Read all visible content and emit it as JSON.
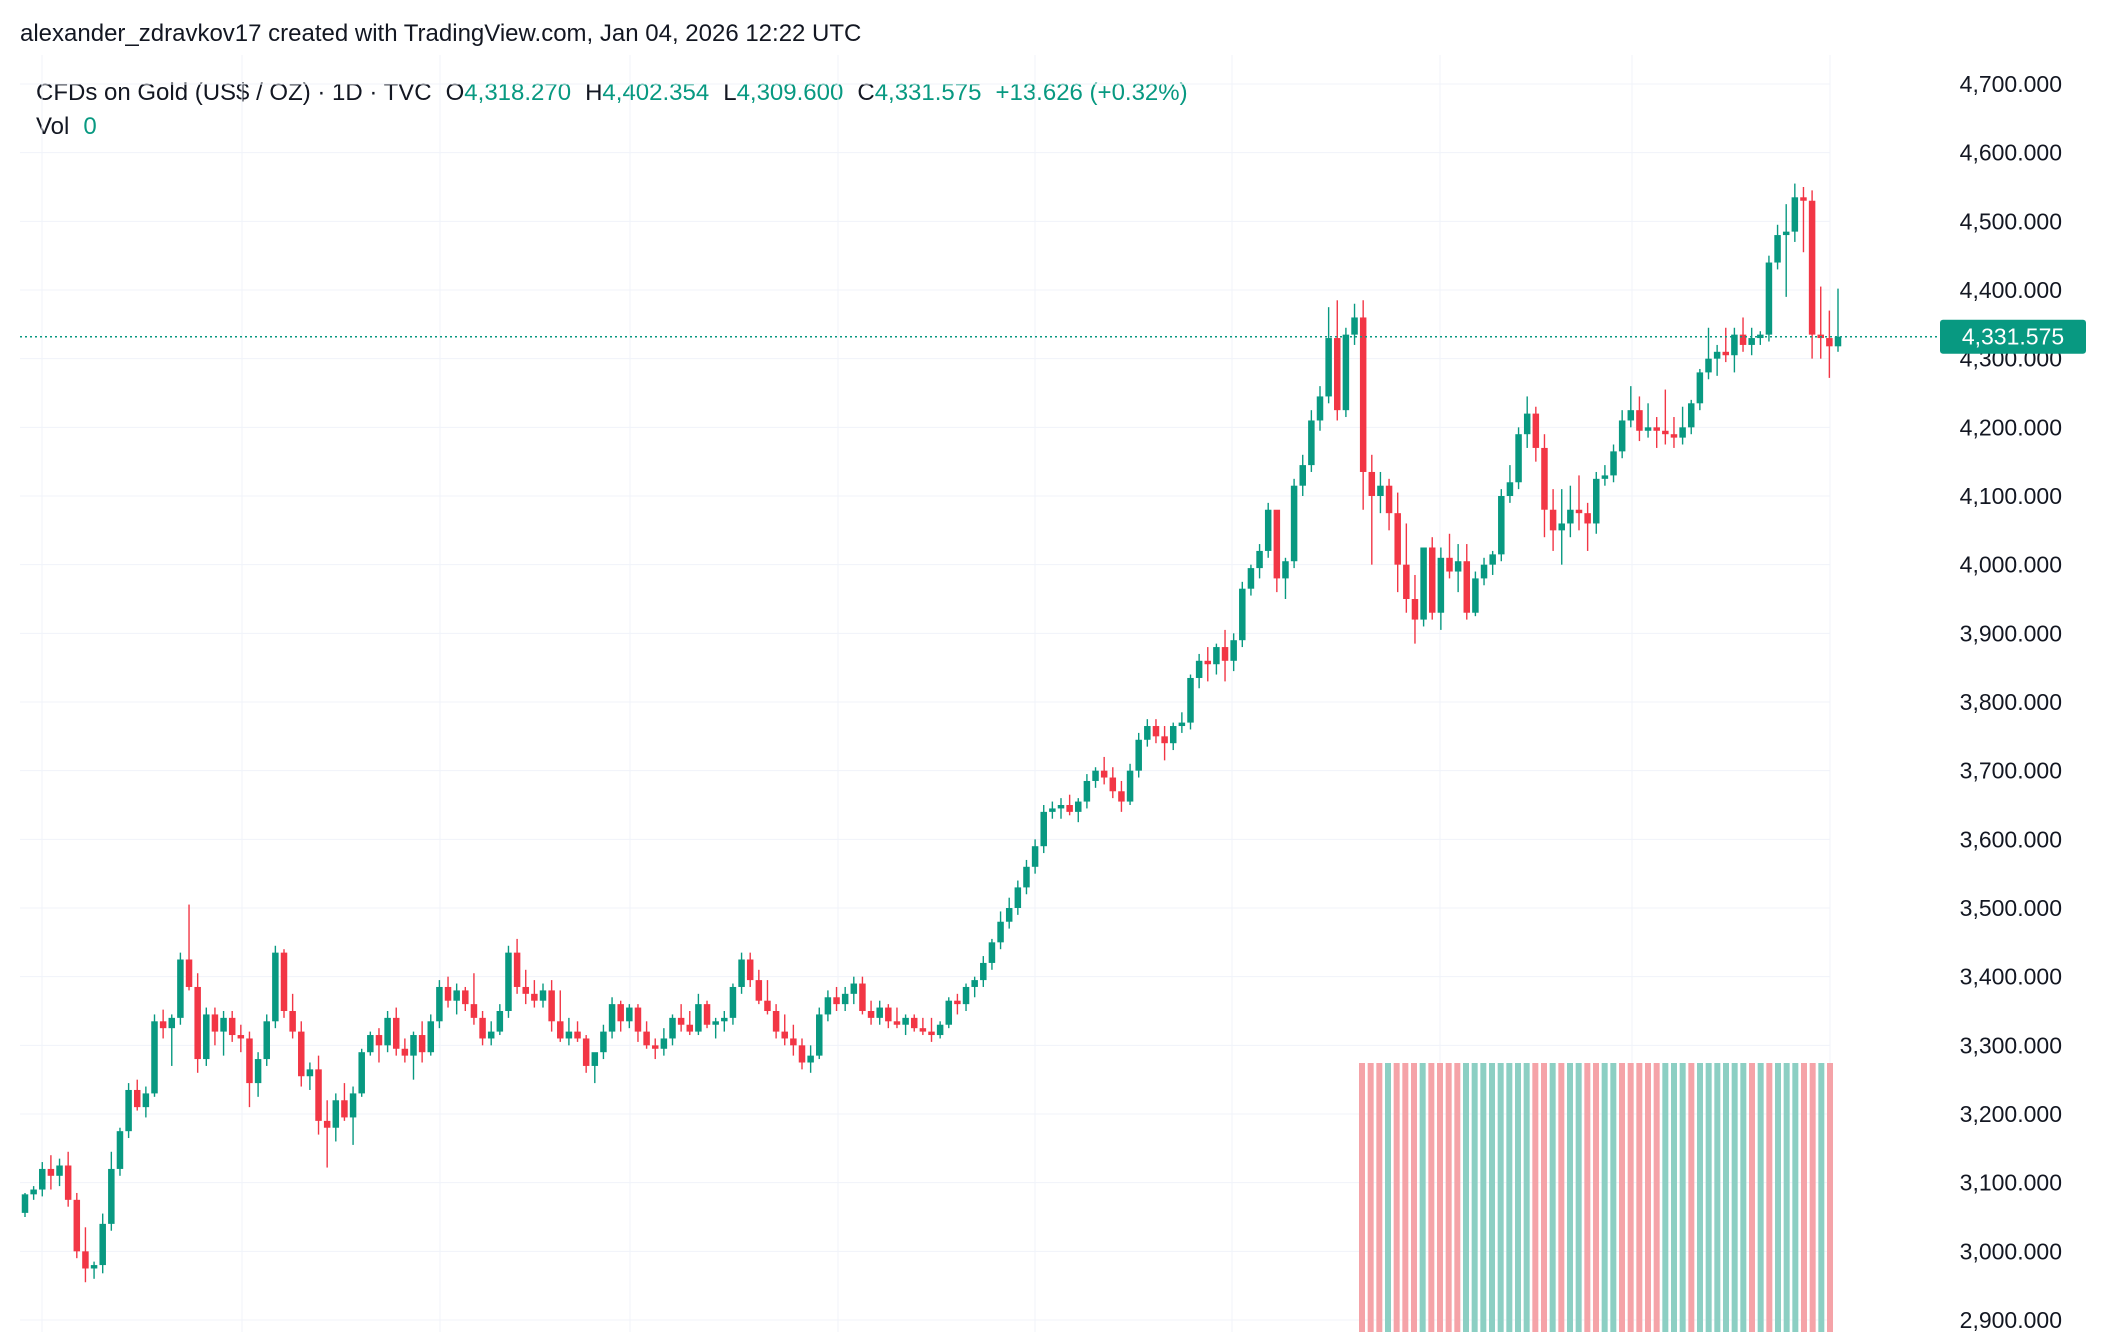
{
  "header": {
    "attribution": "alexander_zdravkov17 created with TradingView.com, Jan 04, 2026 12:22 UTC"
  },
  "legend": {
    "symbol": "CFDs on Gold (US$ / OZ) · 1D · TVC",
    "open_label": "O",
    "open": "4,318.270",
    "high_label": "H",
    "high": "4,402.354",
    "low_label": "L",
    "low": "4,309.600",
    "close_label": "C",
    "close": "4,331.575",
    "change": "+13.626 (+0.32%)",
    "vol_label": "Vol",
    "vol": "0"
  },
  "colors": {
    "up": "#089981",
    "down": "#f23645",
    "up_vol": "#8ccfc3",
    "down_vol": "#f5a3a8",
    "grid": "#f0f3fa",
    "price_line": "#089981"
  },
  "chart_data": {
    "type": "candlestick",
    "symbol": "CFDs on Gold (US$ / OZ)",
    "interval": "1D",
    "source": "TVC",
    "last_price": "4,331.575",
    "y_ticks": [
      "4,700.000",
      "4,600.000",
      "4,500.000",
      "4,400.000",
      "4,300.000",
      "4,200.000",
      "4,100.000",
      "4,000.000",
      "3,900.000",
      "3,800.000",
      "3,700.000",
      "3,600.000",
      "3,500.000",
      "3,400.000",
      "3,300.000",
      "3,200.000",
      "3,100.000",
      "3,000.000",
      "2,900.000"
    ],
    "y_tick_values": [
      4700,
      4600,
      4500,
      4400,
      4300,
      4200,
      4100,
      4000,
      3900,
      3800,
      3700,
      3600,
      3500,
      3400,
      3300,
      3200,
      3100,
      3000,
      2900
    ],
    "ylim": [
      2882,
      4782
    ],
    "grid": true,
    "candles": [
      [
        3056,
        3085,
        3050,
        3083
      ],
      [
        3083,
        3095,
        3075,
        3090
      ],
      [
        3090,
        3130,
        3080,
        3120
      ],
      [
        3120,
        3140,
        3090,
        3110
      ],
      [
        3110,
        3135,
        3095,
        3125
      ],
      [
        3125,
        3145,
        3065,
        3075
      ],
      [
        3075,
        3085,
        2990,
        3000
      ],
      [
        3000,
        3035,
        2955,
        2975
      ],
      [
        2975,
        2985,
        2960,
        2980
      ],
      [
        2980,
        3055,
        2968,
        3040
      ],
      [
        3040,
        3145,
        3030,
        3120
      ],
      [
        3120,
        3180,
        3110,
        3175
      ],
      [
        3175,
        3245,
        3165,
        3235
      ],
      [
        3235,
        3250,
        3205,
        3210
      ],
      [
        3210,
        3240,
        3195,
        3230
      ],
      [
        3230,
        3345,
        3225,
        3335
      ],
      [
        3335,
        3352,
        3310,
        3325
      ],
      [
        3325,
        3345,
        3270,
        3340
      ],
      [
        3340,
        3435,
        3330,
        3425
      ],
      [
        3425,
        3505,
        3380,
        3385
      ],
      [
        3385,
        3405,
        3260,
        3280
      ],
      [
        3280,
        3355,
        3270,
        3345
      ],
      [
        3345,
        3355,
        3300,
        3320
      ],
      [
        3320,
        3350,
        3285,
        3340
      ],
      [
        3340,
        3350,
        3305,
        3315
      ],
      [
        3315,
        3330,
        3290,
        3310
      ],
      [
        3310,
        3320,
        3210,
        3245
      ],
      [
        3245,
        3290,
        3225,
        3280
      ],
      [
        3280,
        3345,
        3270,
        3335
      ],
      [
        3335,
        3445,
        3325,
        3435
      ],
      [
        3435,
        3440,
        3340,
        3350
      ],
      [
        3350,
        3375,
        3310,
        3320
      ],
      [
        3320,
        3335,
        3240,
        3255
      ],
      [
        3255,
        3275,
        3235,
        3265
      ],
      [
        3265,
        3285,
        3170,
        3190
      ],
      [
        3190,
        3220,
        3122,
        3180
      ],
      [
        3180,
        3230,
        3160,
        3220
      ],
      [
        3220,
        3245,
        3190,
        3195
      ],
      [
        3195,
        3240,
        3155,
        3230
      ],
      [
        3230,
        3295,
        3225,
        3290
      ],
      [
        3290,
        3320,
        3285,
        3315
      ],
      [
        3315,
        3325,
        3275,
        3300
      ],
      [
        3300,
        3350,
        3290,
        3340
      ],
      [
        3340,
        3355,
        3285,
        3295
      ],
      [
        3295,
        3310,
        3275,
        3285
      ],
      [
        3285,
        3320,
        3250,
        3315
      ],
      [
        3315,
        3335,
        3275,
        3290
      ],
      [
        3290,
        3345,
        3285,
        3335
      ],
      [
        3335,
        3395,
        3325,
        3385
      ],
      [
        3385,
        3400,
        3355,
        3365
      ],
      [
        3365,
        3390,
        3345,
        3380
      ],
      [
        3380,
        3385,
        3350,
        3360
      ],
      [
        3360,
        3405,
        3330,
        3340
      ],
      [
        3340,
        3350,
        3300,
        3310
      ],
      [
        3310,
        3335,
        3300,
        3320
      ],
      [
        3320,
        3360,
        3315,
        3350
      ],
      [
        3350,
        3445,
        3340,
        3435
      ],
      [
        3435,
        3455,
        3375,
        3385
      ],
      [
        3385,
        3410,
        3360,
        3375
      ],
      [
        3375,
        3395,
        3355,
        3365
      ],
      [
        3365,
        3390,
        3355,
        3380
      ],
      [
        3380,
        3395,
        3320,
        3335
      ],
      [
        3335,
        3380,
        3305,
        3310
      ],
      [
        3310,
        3340,
        3300,
        3320
      ],
      [
        3320,
        3335,
        3305,
        3310
      ],
      [
        3310,
        3315,
        3260,
        3270
      ],
      [
        3270,
        3285,
        3245,
        3290
      ],
      [
        3290,
        3330,
        3280,
        3320
      ],
      [
        3320,
        3370,
        3310,
        3360
      ],
      [
        3360,
        3365,
        3320,
        3335
      ],
      [
        3335,
        3360,
        3325,
        3355
      ],
      [
        3355,
        3360,
        3305,
        3320
      ],
      [
        3320,
        3335,
        3295,
        3300
      ],
      [
        3300,
        3310,
        3280,
        3295
      ],
      [
        3295,
        3325,
        3285,
        3310
      ],
      [
        3310,
        3345,
        3300,
        3340
      ],
      [
        3340,
        3360,
        3320,
        3330
      ],
      [
        3330,
        3350,
        3315,
        3320
      ],
      [
        3320,
        3375,
        3315,
        3360
      ],
      [
        3360,
        3365,
        3325,
        3330
      ],
      [
        3330,
        3340,
        3310,
        3335
      ],
      [
        3335,
        3350,
        3320,
        3340
      ],
      [
        3340,
        3390,
        3330,
        3385
      ],
      [
        3385,
        3435,
        3375,
        3425
      ],
      [
        3425,
        3435,
        3385,
        3395
      ],
      [
        3395,
        3410,
        3360,
        3365
      ],
      [
        3365,
        3395,
        3345,
        3350
      ],
      [
        3350,
        3360,
        3310,
        3320
      ],
      [
        3320,
        3345,
        3300,
        3310
      ],
      [
        3310,
        3330,
        3285,
        3300
      ],
      [
        3300,
        3310,
        3265,
        3275
      ],
      [
        3275,
        3300,
        3260,
        3285
      ],
      [
        3285,
        3355,
        3280,
        3345
      ],
      [
        3345,
        3380,
        3335,
        3370
      ],
      [
        3370,
        3385,
        3350,
        3360
      ],
      [
        3360,
        3385,
        3350,
        3375
      ],
      [
        3375,
        3400,
        3360,
        3390
      ],
      [
        3390,
        3400,
        3345,
        3350
      ],
      [
        3350,
        3365,
        3330,
        3340
      ],
      [
        3340,
        3365,
        3330,
        3355
      ],
      [
        3355,
        3360,
        3325,
        3335
      ],
      [
        3335,
        3355,
        3325,
        3330
      ],
      [
        3330,
        3345,
        3315,
        3340
      ],
      [
        3340,
        3345,
        3320,
        3325
      ],
      [
        3325,
        3340,
        3315,
        3320
      ],
      [
        3320,
        3340,
        3305,
        3315
      ],
      [
        3315,
        3335,
        3310,
        3330
      ],
      [
        3330,
        3370,
        3325,
        3365
      ],
      [
        3365,
        3375,
        3345,
        3360
      ],
      [
        3360,
        3390,
        3350,
        3385
      ],
      [
        3385,
        3400,
        3370,
        3395
      ],
      [
        3395,
        3430,
        3385,
        3420
      ],
      [
        3420,
        3455,
        3410,
        3450
      ],
      [
        3450,
        3495,
        3440,
        3480
      ],
      [
        3480,
        3515,
        3470,
        3500
      ],
      [
        3500,
        3540,
        3490,
        3530
      ],
      [
        3530,
        3570,
        3520,
        3560
      ],
      [
        3560,
        3600,
        3550,
        3590
      ],
      [
        3590,
        3650,
        3580,
        3640
      ],
      [
        3640,
        3655,
        3630,
        3645
      ],
      [
        3645,
        3660,
        3630,
        3650
      ],
      [
        3650,
        3665,
        3635,
        3640
      ],
      [
        3640,
        3660,
        3625,
        3655
      ],
      [
        3655,
        3695,
        3645,
        3685
      ],
      [
        3685,
        3705,
        3675,
        3700
      ],
      [
        3700,
        3720,
        3680,
        3690
      ],
      [
        3690,
        3705,
        3660,
        3670
      ],
      [
        3670,
        3685,
        3640,
        3655
      ],
      [
        3655,
        3710,
        3650,
        3700
      ],
      [
        3700,
        3755,
        3690,
        3745
      ],
      [
        3745,
        3775,
        3735,
        3765
      ],
      [
        3765,
        3775,
        3740,
        3750
      ],
      [
        3750,
        3765,
        3715,
        3740
      ],
      [
        3740,
        3770,
        3730,
        3765
      ],
      [
        3765,
        3785,
        3755,
        3770
      ],
      [
        3770,
        3840,
        3760,
        3835
      ],
      [
        3835,
        3870,
        3820,
        3860
      ],
      [
        3860,
        3880,
        3830,
        3855
      ],
      [
        3855,
        3885,
        3840,
        3880
      ],
      [
        3880,
        3905,
        3830,
        3860
      ],
      [
        3860,
        3900,
        3845,
        3890
      ],
      [
        3890,
        3975,
        3880,
        3965
      ],
      [
        3965,
        4000,
        3955,
        3995
      ],
      [
        3995,
        4030,
        3980,
        4020
      ],
      [
        4020,
        4090,
        4010,
        4080
      ],
      [
        4080,
        4065,
        3960,
        3980
      ],
      [
        3980,
        4010,
        3950,
        4005
      ],
      [
        4005,
        4125,
        3995,
        4115
      ],
      [
        4115,
        4160,
        4100,
        4145
      ],
      [
        4145,
        4225,
        4135,
        4210
      ],
      [
        4210,
        4260,
        4195,
        4245
      ],
      [
        4245,
        4375,
        4235,
        4330
      ],
      [
        4330,
        4385,
        4210,
        4225
      ],
      [
        4225,
        4345,
        4215,
        4335
      ],
      [
        4335,
        4380,
        4320,
        4360
      ],
      [
        4360,
        4385,
        4080,
        4135
      ],
      [
        4135,
        4160,
        4000,
        4100
      ],
      [
        4100,
        4135,
        4075,
        4115
      ],
      [
        4115,
        4125,
        4050,
        4075
      ],
      [
        4075,
        4105,
        3960,
        4000
      ],
      [
        4000,
        4060,
        3930,
        3950
      ],
      [
        3950,
        3985,
        3885,
        3920
      ],
      [
        3920,
        4010,
        3910,
        4025
      ],
      [
        4025,
        4040,
        3920,
        3930
      ],
      [
        3930,
        4025,
        3905,
        4010
      ],
      [
        4010,
        4045,
        3980,
        3990
      ],
      [
        3990,
        4030,
        3960,
        4005
      ],
      [
        4005,
        4030,
        3920,
        3930
      ],
      [
        3930,
        3990,
        3925,
        3980
      ],
      [
        3980,
        4010,
        3970,
        4000
      ],
      [
        4000,
        4020,
        3985,
        4015
      ],
      [
        4015,
        4110,
        4005,
        4100
      ],
      [
        4100,
        4145,
        4090,
        4120
      ],
      [
        4120,
        4200,
        4110,
        4190
      ],
      [
        4190,
        4245,
        4170,
        4220
      ],
      [
        4220,
        4230,
        4150,
        4170
      ],
      [
        4170,
        4190,
        4040,
        4080
      ],
      [
        4080,
        4110,
        4020,
        4050
      ],
      [
        4050,
        4110,
        4000,
        4060
      ],
      [
        4060,
        4115,
        4040,
        4080
      ],
      [
        4080,
        4130,
        4050,
        4075
      ],
      [
        4075,
        4090,
        4020,
        4060
      ],
      [
        4060,
        4135,
        4045,
        4125
      ],
      [
        4125,
        4145,
        4115,
        4130
      ],
      [
        4130,
        4175,
        4120,
        4165
      ],
      [
        4165,
        4225,
        4155,
        4210
      ],
      [
        4210,
        4260,
        4200,
        4225
      ],
      [
        4225,
        4245,
        4180,
        4195
      ],
      [
        4195,
        4235,
        4185,
        4200
      ],
      [
        4200,
        4215,
        4170,
        4195
      ],
      [
        4195,
        4255,
        4175,
        4190
      ],
      [
        4190,
        4215,
        4170,
        4185
      ],
      [
        4185,
        4230,
        4175,
        4200
      ],
      [
        4200,
        4240,
        4190,
        4235
      ],
      [
        4235,
        4285,
        4225,
        4280
      ],
      [
        4280,
        4345,
        4270,
        4300
      ],
      [
        4300,
        4320,
        4275,
        4310
      ],
      [
        4310,
        4345,
        4295,
        4305
      ],
      [
        4305,
        4345,
        4280,
        4335
      ],
      [
        4335,
        4360,
        4310,
        4320
      ],
      [
        4320,
        4345,
        4305,
        4330
      ],
      [
        4330,
        4340,
        4320,
        4335
      ],
      [
        4335,
        4450,
        4325,
        4440
      ],
      [
        4440,
        4495,
        4430,
        4480
      ],
      [
        4480,
        4525,
        4390,
        4485
      ],
      [
        4485,
        4555,
        4470,
        4535
      ],
      [
        4535,
        4550,
        4455,
        4530
      ],
      [
        4530,
        4545,
        4300,
        4335
      ],
      [
        4335,
        4405,
        4300,
        4330
      ],
      [
        4330,
        4370,
        4272,
        4318
      ],
      [
        4318,
        4402,
        4310,
        4332
      ]
    ],
    "volume_bars": [
      "down",
      "down",
      "down",
      "up",
      "down",
      "down",
      "down",
      "up",
      "down",
      "down",
      "down",
      "down",
      "up",
      "up",
      "up",
      "up",
      "up",
      "up",
      "up",
      "up",
      "down",
      "down",
      "up",
      "down",
      "up",
      "up",
      "down",
      "down",
      "up",
      "up",
      "down",
      "down",
      "down",
      "down",
      "down",
      "up",
      "up",
      "up",
      "down",
      "up",
      "up",
      "up",
      "up",
      "up",
      "up",
      "down",
      "up",
      "down",
      "up",
      "up",
      "up",
      "down",
      "down",
      "up",
      "down"
    ]
  }
}
